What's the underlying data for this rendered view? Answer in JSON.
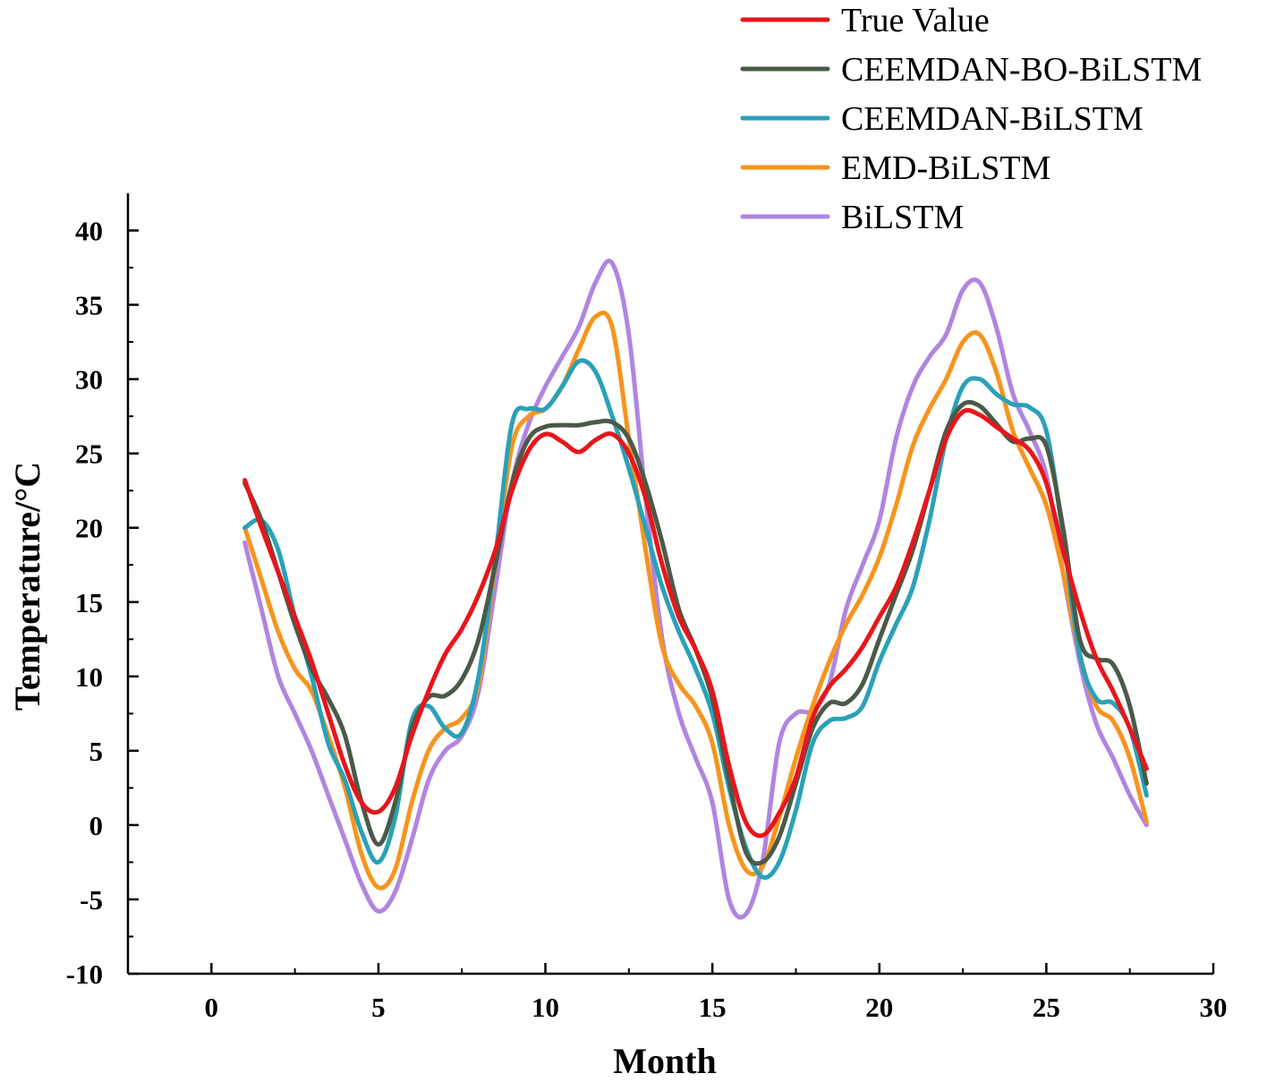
{
  "chart_data": {
    "type": "line",
    "title": "",
    "xlabel": "Month",
    "ylabel": "Temperature/°C",
    "xlim": [
      -2.5,
      30
    ],
    "ylim": [
      -10,
      42.5
    ],
    "xticks": [
      0,
      5,
      10,
      15,
      20,
      25,
      30
    ],
    "xtick_labels": [
      "0",
      "5",
      "10",
      "15",
      "20",
      "25",
      "30"
    ],
    "yticks": [
      -10,
      -5,
      0,
      5,
      10,
      15,
      20,
      25,
      30,
      35,
      40
    ],
    "ytick_labels": [
      "-10",
      "-5",
      "0",
      "5",
      "10",
      "15",
      "20",
      "25",
      "30",
      "35",
      "40"
    ],
    "grid": false,
    "legend_position": "top-right",
    "x": [
      1,
      1.5,
      2,
      2.5,
      3,
      3.5,
      4,
      4.5,
      5,
      5.5,
      6,
      6.5,
      7,
      7.5,
      8,
      8.5,
      9,
      9.5,
      10,
      10.5,
      11,
      11.5,
      12,
      12.5,
      13,
      13.5,
      14,
      14.5,
      15,
      15.5,
      16,
      16.5,
      17,
      17.5,
      18,
      18.5,
      19,
      19.5,
      20,
      20.5,
      21,
      21.5,
      22,
      22.5,
      23,
      23.5,
      24,
      24.5,
      25,
      25.5,
      26,
      26.5,
      27,
      27.5,
      28
    ],
    "series": [
      {
        "name": "True Value",
        "color": "#e8151b",
        "values": [
          23.2,
          20.0,
          17.0,
          14.0,
          11.0,
          7.5,
          4.0,
          1.5,
          0.9,
          2.5,
          6.0,
          9.0,
          11.5,
          13.2,
          15.5,
          18.5,
          22.5,
          25.2,
          26.3,
          25.8,
          25.1,
          25.9,
          26.3,
          25.0,
          22.0,
          17.5,
          14.0,
          11.8,
          9.0,
          4.0,
          0.2,
          -0.7,
          0.8,
          3.2,
          7.2,
          9.3,
          10.5,
          12.0,
          14.0,
          16.0,
          19.0,
          22.5,
          26.0,
          27.8,
          27.6,
          26.8,
          26.0,
          25.2,
          23.0,
          18.5,
          14.5,
          11.2,
          9.0,
          6.5,
          3.8
        ]
      },
      {
        "name": "CEEMDAN-BO-BiLSTM",
        "color": "#4a5a48",
        "values": [
          23.0,
          20.5,
          17.0,
          13.5,
          10.5,
          8.5,
          6.0,
          1.5,
          -1.3,
          1.5,
          6.5,
          8.6,
          8.7,
          9.8,
          12.5,
          17.5,
          23.0,
          26.0,
          26.8,
          26.9,
          26.9,
          27.1,
          27.1,
          26.0,
          23.0,
          19.0,
          14.5,
          11.8,
          8.5,
          3.0,
          -1.8,
          -2.5,
          -0.8,
          2.8,
          6.5,
          8.2,
          8.2,
          9.5,
          12.5,
          15.5,
          18.5,
          22.5,
          26.5,
          28.3,
          28.2,
          27.0,
          25.8,
          26.0,
          25.5,
          20.0,
          12.5,
          11.2,
          10.8,
          8.0,
          2.8
        ]
      },
      {
        "name": "CEEMDAN-BiLSTM",
        "color": "#2aa1b8",
        "values": [
          20.0,
          20.5,
          18.5,
          14.0,
          10.0,
          5.5,
          3.0,
          -0.5,
          -2.5,
          0.5,
          7.0,
          8.0,
          6.5,
          6.2,
          10.0,
          18.0,
          27.0,
          28.0,
          28.0,
          29.5,
          31.2,
          30.5,
          27.5,
          24.0,
          20.0,
          16.0,
          13.0,
          10.5,
          7.5,
          2.5,
          -1.5,
          -3.5,
          -2.5,
          1.0,
          5.5,
          7.0,
          7.2,
          8.0,
          11.0,
          13.5,
          16.0,
          20.5,
          26.0,
          29.5,
          30.0,
          29.0,
          28.3,
          28.1,
          26.5,
          19.5,
          11.5,
          8.5,
          8.2,
          6.5,
          2.0
        ]
      },
      {
        "name": "EMD-BiLSTM",
        "color": "#f7941d",
        "values": [
          20.0,
          16.5,
          13.0,
          10.5,
          9.0,
          6.0,
          2.5,
          -2.0,
          -4.2,
          -3.0,
          1.5,
          5.0,
          6.5,
          7.2,
          9.5,
          17.5,
          25.5,
          27.5,
          28.0,
          29.5,
          32.0,
          34.2,
          33.5,
          26.0,
          18.5,
          12.0,
          9.5,
          8.0,
          5.5,
          0.0,
          -3.0,
          -2.8,
          0.5,
          4.5,
          8.0,
          11.0,
          13.5,
          15.5,
          18.0,
          21.5,
          25.5,
          28.0,
          30.0,
          32.5,
          33.0,
          30.5,
          26.5,
          24.0,
          21.5,
          17.0,
          11.5,
          8.0,
          7.0,
          4.5,
          0.2
        ]
      },
      {
        "name": "BiLSTM",
        "color": "#b085e0",
        "values": [
          19.0,
          14.5,
          10.0,
          7.5,
          5.0,
          2.0,
          -1.0,
          -4.0,
          -5.8,
          -4.5,
          -1.0,
          3.0,
          5.0,
          6.0,
          9.0,
          16.0,
          23.0,
          27.0,
          29.5,
          31.5,
          33.5,
          36.5,
          37.8,
          33.0,
          22.0,
          12.5,
          7.5,
          4.5,
          1.5,
          -5.0,
          -6.0,
          -2.5,
          5.5,
          7.5,
          7.7,
          9.5,
          14.5,
          17.5,
          20.5,
          26.0,
          29.5,
          31.5,
          33.0,
          36.0,
          36.5,
          33.5,
          29.0,
          26.5,
          23.5,
          17.0,
          11.0,
          6.8,
          4.5,
          2.0,
          0.0
        ]
      }
    ]
  }
}
